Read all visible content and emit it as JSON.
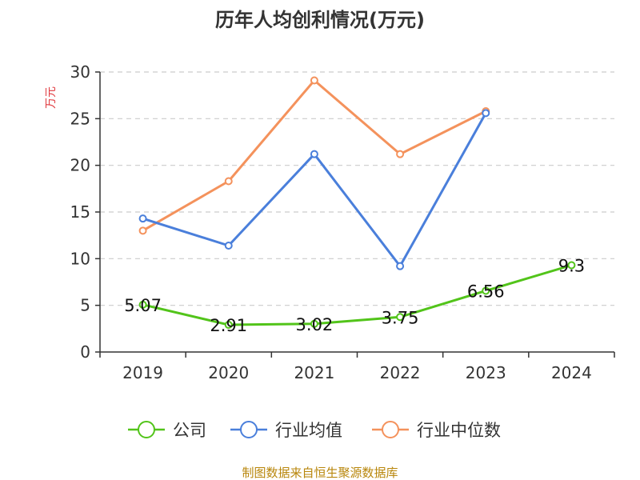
{
  "chart_data": {
    "type": "line",
    "title": "历年人均创利情况(万元)",
    "ylabel": "万元",
    "xlabel": "",
    "categories": [
      "2019",
      "2020",
      "2021",
      "2022",
      "2023",
      "2024"
    ],
    "ylim": [
      0,
      30
    ],
    "yticks": [
      0,
      5,
      10,
      15,
      20,
      25,
      30
    ],
    "grid": true,
    "legend_position": "bottom",
    "series": [
      {
        "name": "公司",
        "values": [
          5.07,
          2.91,
          3.02,
          3.75,
          6.56,
          9.3
        ],
        "labels": [
          "5.07",
          "2.91",
          "3.02",
          "3.75",
          "6.56",
          "9.3"
        ],
        "color": "#52c41a"
      },
      {
        "name": "行业均值",
        "values": [
          14.3,
          11.4,
          21.2,
          9.2,
          25.6,
          null
        ],
        "color": "#4a7fdb"
      },
      {
        "name": "行业中位数",
        "values": [
          13.0,
          18.3,
          29.1,
          21.2,
          25.8,
          null
        ],
        "color": "#f4925c"
      }
    ]
  },
  "source_note": "制图数据来自恒生聚源数据库",
  "colors": {
    "ylabel": "#e0393e",
    "source": "#b8860b",
    "axis": "#333333",
    "grid": "#cccccc"
  }
}
